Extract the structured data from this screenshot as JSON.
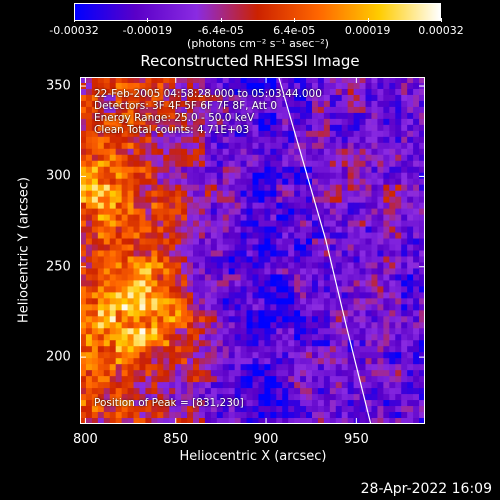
{
  "colorbar": {
    "ticks": [
      "-0.00032",
      "-0.00019",
      "-6.4e-05",
      "6.4e-05",
      "0.00019",
      "0.00032"
    ],
    "unit_label": "(photons cm⁻² s⁻¹ asec⁻²)",
    "colors": [
      "#0000ff",
      "#5a00c8",
      "#8a2be2",
      "#cc2200",
      "#ff6600",
      "#ffcc00",
      "#ffffff"
    ]
  },
  "chart_data": {
    "type": "heatmap",
    "title": "Reconstructed RHESSI Image",
    "xlabel": "Heliocentric X (arcsec)",
    "ylabel": "Heliocentric Y (arcsec)",
    "xlim": [
      797,
      988
    ],
    "ylim": [
      163,
      355
    ],
    "xticks": [
      "800",
      "850",
      "900",
      "950"
    ],
    "yticks": [
      "200",
      "250",
      "300",
      "350"
    ],
    "vmin": -0.00032,
    "vmax": 0.00032,
    "peak": [
      831,
      230
    ],
    "limb_curve": {
      "x": [
        907,
        920,
        933,
        945,
        958
      ],
      "y": [
        355,
        310,
        265,
        215,
        163
      ]
    }
  },
  "annotations": {
    "time_range": "22-Feb-2005 04:58:28.000 to 05:03:44.000",
    "detectors": "Detectors: 3F 4F 5F 6F 7F 8F, Att 0",
    "energy": "Energy Range: 25.0 - 50.0 keV",
    "clean": "Clean    Total counts: 4.71E+03",
    "peak_text": "Position of Peak = [831,230]"
  },
  "footer": {
    "date": "28-Apr-2022 16:09"
  }
}
